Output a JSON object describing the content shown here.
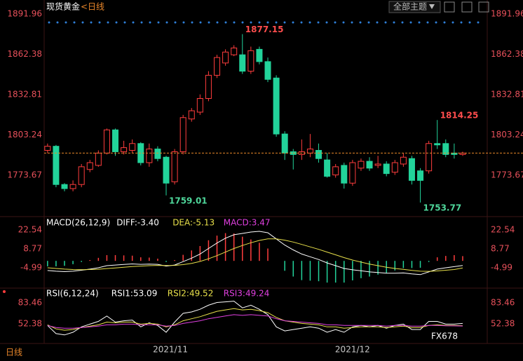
{
  "header": {
    "instrument": "现货黄金",
    "period": "<日线",
    "theme_button": "全部主题"
  },
  "chart_data": [
    {
      "type": "candlestick",
      "xlim": [
        -0.4,
        51.9
      ],
      "xticks": [
        {
          "value": 14.5,
          "label": "2021/11"
        },
        {
          "value": 36,
          "label": "2021/12"
        }
      ],
      "ylim": [
        1744,
        1897
      ],
      "yticks": [
        1773.67,
        1803.24,
        1832.81,
        1862.38,
        1891.96
      ],
      "up_color": "#ff3d3d",
      "down_color": "#22d39a",
      "open": [
        1792,
        1795,
        1767,
        1764,
        1767,
        1778,
        1781,
        1790,
        1807,
        1791,
        1792,
        1797,
        1783,
        1793,
        1787,
        1769,
        1791,
        1815,
        1820,
        1830,
        1847,
        1856,
        1862,
        1862,
        1850,
        1866,
        1857,
        1845,
        1804,
        1791,
        1789,
        1790,
        1792,
        1785,
        1774,
        1781,
        1768,
        1779,
        1784,
        1781,
        1782,
        1776,
        1782,
        1786,
        1777,
        1777,
        1797,
        1797,
        1790,
        1789
      ],
      "high": [
        1797,
        1796,
        1768,
        1770,
        1782,
        1785,
        1792,
        1808,
        1808,
        1799,
        1800,
        1798,
        1797,
        1795,
        1788,
        1793,
        1818,
        1823,
        1833,
        1850,
        1862,
        1866,
        1869,
        1877.15,
        1868,
        1868,
        1860,
        1847,
        1806,
        1793,
        1800,
        1804,
        1797,
        1790,
        1782,
        1783,
        1785,
        1786,
        1787,
        1788,
        1784,
        1785,
        1790,
        1788,
        1779,
        1799,
        1814.25,
        1800,
        1797,
        1791
      ],
      "low": [
        1790,
        1765,
        1762,
        1762,
        1765,
        1776,
        1780,
        1789,
        1788,
        1789,
        1790,
        1781,
        1780,
        1784,
        1759.01,
        1767,
        1789,
        1813,
        1818,
        1828,
        1845,
        1854,
        1861,
        1848,
        1848,
        1855,
        1842,
        1802,
        1785,
        1778,
        1785,
        1787,
        1783,
        1772,
        1772,
        1764,
        1766,
        1777,
        1777,
        1779,
        1773,
        1774,
        1780,
        1767,
        1753.77,
        1775,
        1793,
        1787,
        1786,
        1788
      ],
      "close": [
        1795,
        1767,
        1764,
        1767,
        1780,
        1783,
        1790,
        1807,
        1791,
        1794,
        1797,
        1783,
        1793,
        1786,
        1768,
        1791,
        1816,
        1821,
        1830,
        1847,
        1860,
        1864,
        1867,
        1850,
        1865,
        1857,
        1844,
        1804,
        1790,
        1789,
        1791,
        1793,
        1786,
        1773,
        1780,
        1768,
        1783,
        1784,
        1779,
        1782,
        1775,
        1783,
        1787,
        1770,
        1770,
        1797,
        1796,
        1789,
        1789,
        1790
      ]
    },
    {
      "type": "macd",
      "title": "MACD(26,12,9)",
      "xlim": [
        -0.4,
        51.9
      ],
      "ylim": [
        -19.3,
        30.7
      ],
      "yticks": [
        -4.99,
        8.77,
        22.54
      ],
      "up_color": "#ff3d3d",
      "down_color": "#22d39a",
      "series": [
        {
          "name": "DIFF:-3.40",
          "color": "#ffffff",
          "values": [
            -7,
            -7.5,
            -7.8,
            -7.5,
            -6.8,
            -6,
            -5,
            -3.5,
            -3,
            -2.6,
            -2.2,
            -2.5,
            -2.3,
            -2.5,
            -3.8,
            -3,
            -0.5,
            2,
            5,
            9,
            13,
            16.5,
            19,
            20,
            21,
            21.5,
            20.5,
            16,
            11.5,
            8,
            5,
            3,
            1,
            -1.5,
            -3.5,
            -5.5,
            -6.5,
            -7.2,
            -8,
            -8.5,
            -9,
            -9,
            -8.8,
            -9.5,
            -10,
            -8,
            -6,
            -5,
            -4.2,
            -3.4
          ]
        },
        {
          "name": "DEA:-5.13",
          "color": "#e8e04a",
          "values": [
            -5,
            -5.5,
            -6,
            -6.3,
            -6.4,
            -6.3,
            -6.1,
            -5.6,
            -5.1,
            -4.6,
            -4.1,
            -3.8,
            -3.5,
            -3.3,
            -3.4,
            -3.3,
            -2.7,
            -1.8,
            -0.4,
            1.5,
            3.8,
            6.4,
            9,
            11.2,
            13.2,
            14.9,
            16,
            16,
            15.1,
            13.7,
            12,
            10.2,
            8.4,
            6.4,
            4.4,
            2.4,
            0.6,
            -0.9,
            -2.3,
            -3.5,
            -4.6,
            -5.5,
            -6.2,
            -6.9,
            -7.5,
            -7.6,
            -7.3,
            -6.8,
            -6.3,
            -5.13
          ]
        },
        {
          "name": "MACD:3.47",
          "color": "#e040e0",
          "values": [
            -4,
            -4,
            -3.6,
            -2.4,
            -0.8,
            0.6,
            2.2,
            4.2,
            4.2,
            4,
            3.8,
            2.6,
            2.4,
            1.6,
            -0.8,
            0.6,
            4.4,
            7.6,
            10.8,
            15,
            18.4,
            20.2,
            20,
            17.6,
            15.6,
            13.2,
            9,
            0,
            -7.2,
            -11.4,
            -14,
            -14.4,
            -14.8,
            -15.8,
            -15.8,
            -15.8,
            -14.2,
            -12.6,
            -11.4,
            -10,
            -8.8,
            -7,
            -5.2,
            -5.2,
            -5,
            -0.8,
            2.6,
            3.6,
            4.2,
            3.47
          ]
        }
      ]
    },
    {
      "type": "rsi",
      "title": "RSI(6,12,24)",
      "xlim": [
        -0.4,
        51.9
      ],
      "ylim": [
        23.4,
        103.2
      ],
      "yticks": [
        52.38,
        83.46
      ],
      "series": [
        {
          "name": "RSI1:53.09",
          "color": "#ffffff",
          "values": [
            50,
            38,
            36,
            40,
            48,
            52,
            56,
            64,
            55,
            57,
            58,
            48,
            54,
            50,
            40,
            55,
            68,
            70,
            74,
            80,
            84,
            85,
            86,
            76,
            80,
            74,
            66,
            48,
            42,
            44,
            46,
            48,
            46,
            40,
            44,
            40,
            48,
            50,
            48,
            50,
            46,
            50,
            52,
            44,
            44,
            56,
            56,
            52,
            52,
            53.09
          ]
        },
        {
          "name": "RSI2:49.52",
          "color": "#e8e04a",
          "values": [
            51,
            45,
            43,
            44,
            47,
            49,
            51,
            55,
            54,
            55,
            55,
            52,
            53,
            52,
            48,
            51,
            57,
            60,
            63,
            67,
            71,
            73,
            75,
            73,
            74,
            72,
            69,
            62,
            57,
            55,
            53,
            52,
            51,
            48,
            48,
            46,
            47,
            48,
            48,
            48,
            47,
            48,
            49,
            47,
            47,
            50,
            51,
            50,
            50,
            49.52
          ]
        },
        {
          "name": "RSI3:49.24",
          "color": "#e040e0",
          "values": [
            50,
            47,
            46,
            46,
            47,
            48,
            49,
            51,
            51,
            52,
            52,
            51,
            51,
            51,
            49,
            50,
            53,
            55,
            57,
            60,
            62,
            64,
            66,
            65,
            66,
            65,
            64,
            60,
            57,
            56,
            55,
            54,
            53,
            51,
            51,
            50,
            50,
            50,
            50,
            50,
            49,
            50,
            50,
            49,
            49,
            50,
            50,
            49.5,
            49.4,
            49.24
          ]
        }
      ]
    }
  ],
  "footer": {
    "period": "日线",
    "watermark": "FX678"
  }
}
